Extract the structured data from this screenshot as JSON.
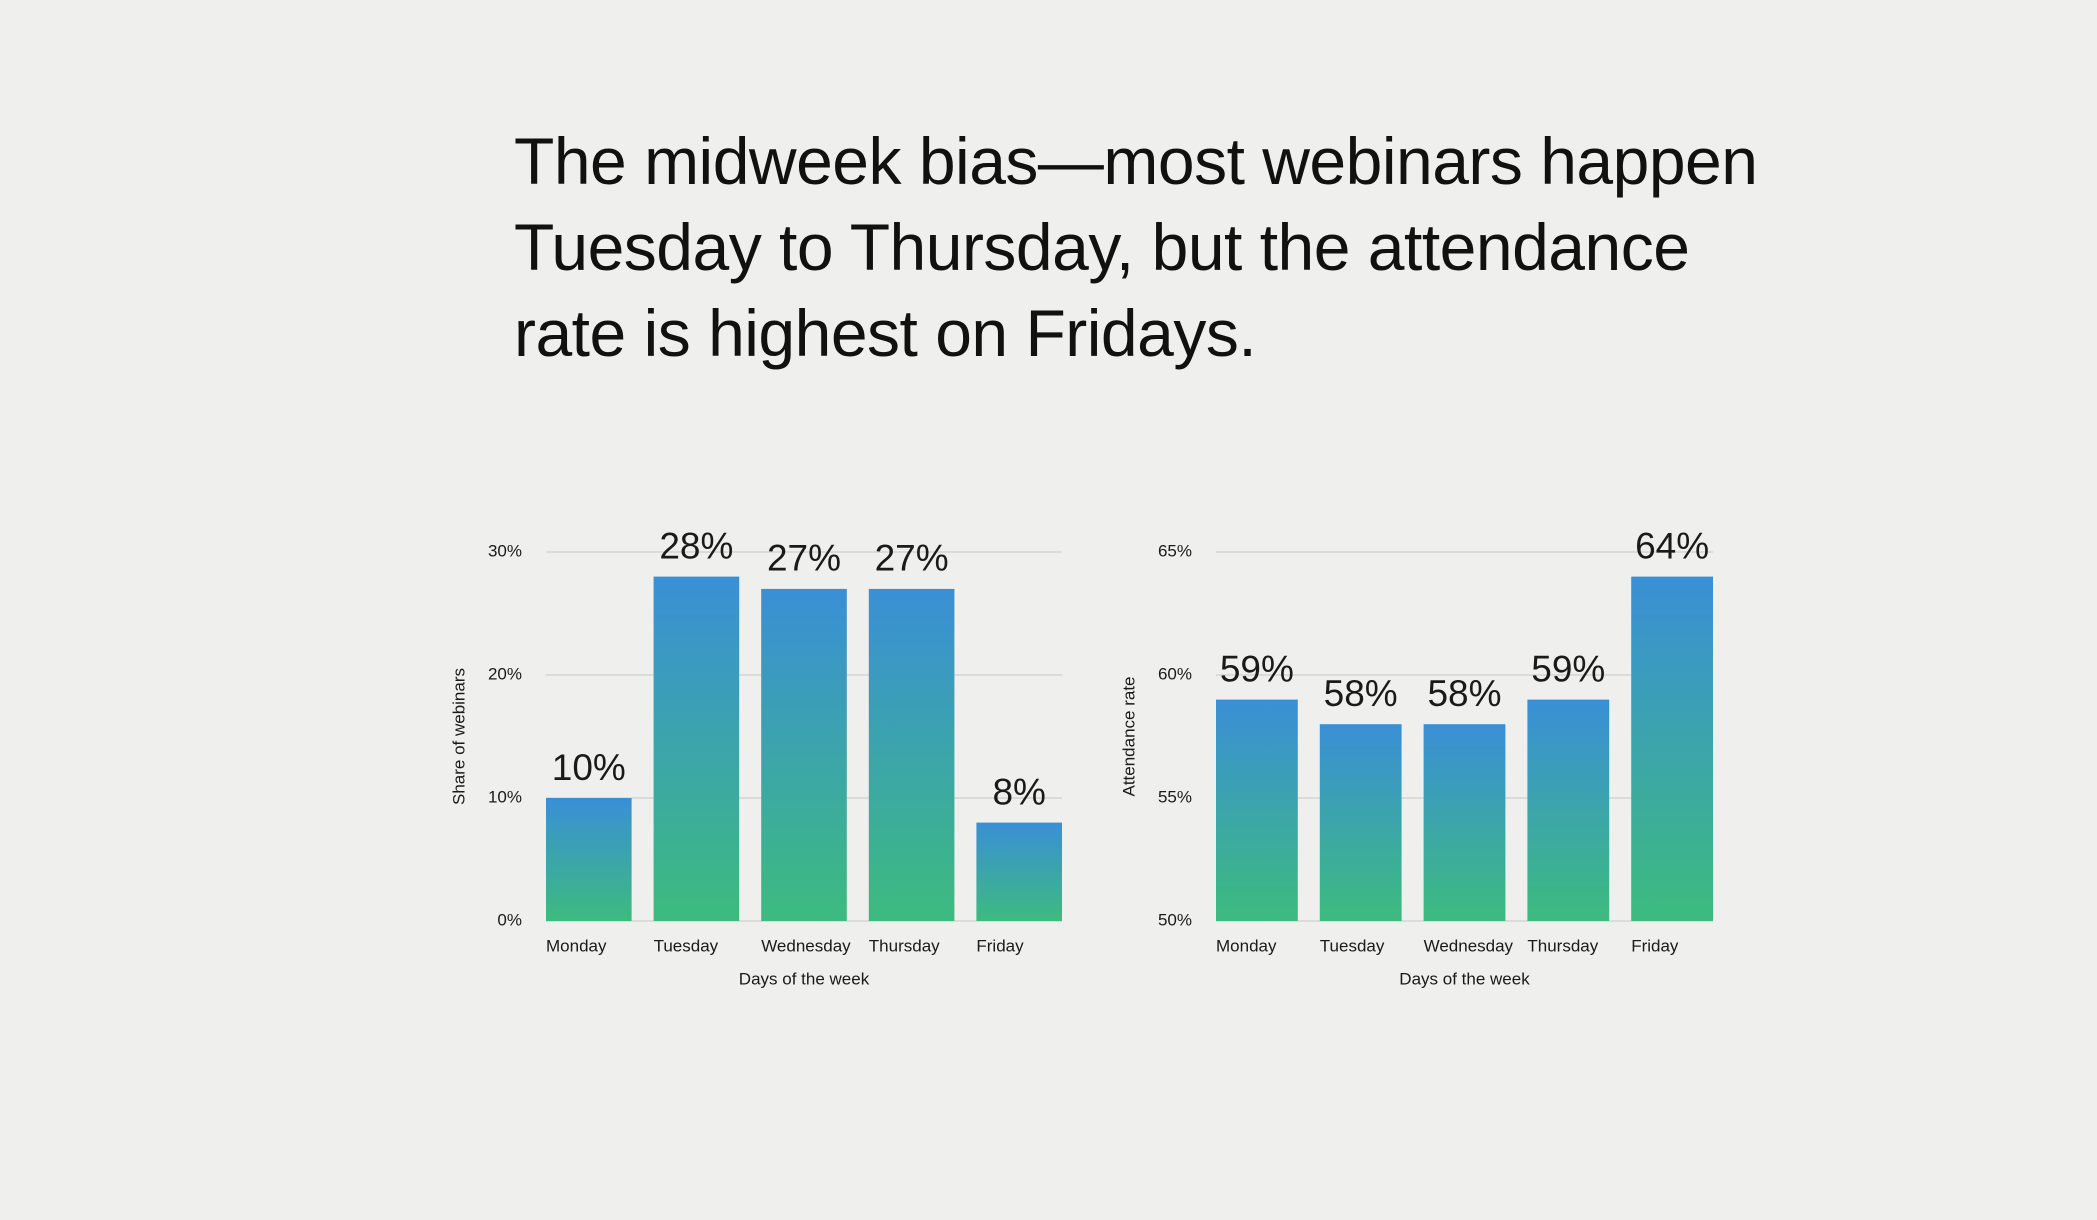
{
  "title": "The midweek bias—most webinars happen Tuesday to Thursday, but the attendance rate is highest on Fridays.",
  "chart_data": [
    {
      "type": "bar",
      "ylabel": "Share of webinars",
      "xlabel": "Days of the week",
      "categories": [
        "Monday",
        "Tuesday",
        "Wednesday",
        "Thursday",
        "Friday"
      ],
      "values": [
        10,
        28,
        27,
        27,
        8
      ],
      "value_labels": [
        "10%",
        "28%",
        "27%",
        "27%",
        "8%"
      ],
      "gradient": [
        "#3a8fd6",
        "#3dbb7e"
      ],
      "ylim": [
        0,
        30
      ],
      "yticks": [
        {
          "value": 0,
          "label": "0%"
        },
        {
          "value": 10,
          "label": "10%"
        },
        {
          "value": 20,
          "label": "20%"
        },
        {
          "value": 30,
          "label": "30%"
        }
      ],
      "grid": true
    },
    {
      "type": "bar",
      "ylabel": "Attendance rate",
      "xlabel": "Days of the week",
      "categories": [
        "Monday",
        "Tuesday",
        "Wednesday",
        "Thursday",
        "Friday"
      ],
      "values": [
        59,
        58,
        58,
        59,
        64
      ],
      "value_labels": [
        "59%",
        "58%",
        "58%",
        "59%",
        "64%"
      ],
      "gradient": [
        "#3a8fd6",
        "#3dbb7e"
      ],
      "ylim": [
        50,
        65
      ],
      "yticks": [
        {
          "value": 50,
          "label": "50%"
        },
        {
          "value": 55,
          "label": "55%"
        },
        {
          "value": 60,
          "label": "60%"
        },
        {
          "value": 65,
          "label": "65%"
        }
      ],
      "grid": true
    }
  ]
}
